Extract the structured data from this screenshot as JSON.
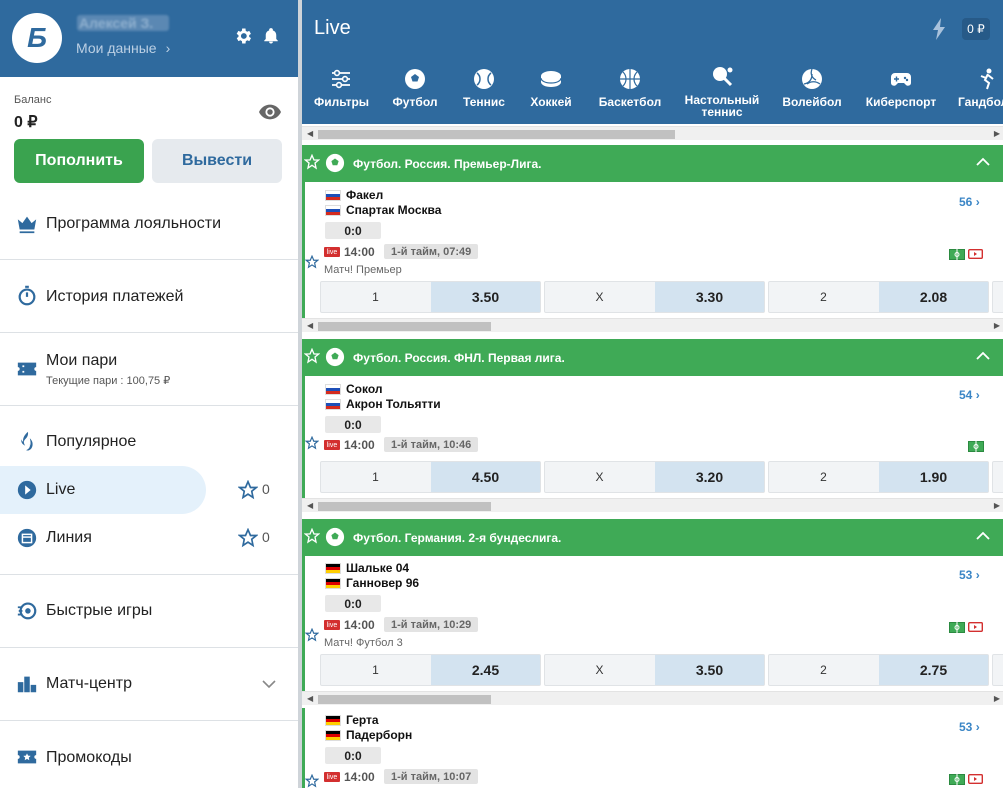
{
  "sidebar": {
    "user_name": "Алексей З.",
    "my_data": "Мои данные",
    "balance_label": "Баланс",
    "balance_value": "0 ₽",
    "deposit": "Пополнить",
    "withdraw": "Вывести",
    "items": {
      "loyalty": "Программа лояльности",
      "payments": "История платежей",
      "bets": "Мои пари",
      "bets_sub": "Текущие пари : 100,75 ₽",
      "popular": "Популярное",
      "live": "Live",
      "live_count": "0",
      "line": "Линия",
      "line_count": "0",
      "quick": "Быстрые игры",
      "match": "Матч-центр",
      "promo": "Промокоды"
    }
  },
  "header": {
    "title": "Live",
    "balance": "0 ₽",
    "sports": [
      "Фильтры",
      "Футбол",
      "Теннис",
      "Хоккей",
      "Баскетбол",
      "Настольный теннис",
      "Волейбол",
      "Киберспорт",
      "Гандбол"
    ]
  },
  "leagues": [
    {
      "name": "Футбол. Россия. Премьер-Лига."
    },
    {
      "name": "Футбол. Россия. ФНЛ. Первая лига."
    },
    {
      "name": "Футбол. Германия. 2-я бундеслига."
    }
  ],
  "events": [
    {
      "home": "Факел",
      "away": "Спартак Москва",
      "score": "0:0",
      "more": "56",
      "live": "live",
      "time": "14:00",
      "period": "1-й тайм, 07:49",
      "comp": "Матч! Премьер",
      "odds": [
        {
          "l": "1",
          "v": "3.50"
        },
        {
          "l": "X",
          "v": "3.30"
        },
        {
          "l": "2",
          "v": "2.08"
        }
      ]
    },
    {
      "home": "Сокол",
      "away": "Акрон Тольятти",
      "score": "0:0",
      "more": "54",
      "live": "live",
      "time": "14:00",
      "period": "1-й тайм, 10:46",
      "comp": "",
      "odds": [
        {
          "l": "1",
          "v": "4.50"
        },
        {
          "l": "X",
          "v": "3.20"
        },
        {
          "l": "2",
          "v": "1.90"
        }
      ]
    },
    {
      "home": "Шальке 04",
      "away": "Ганновер 96",
      "score": "0:0",
      "more": "53",
      "live": "live",
      "time": "14:00",
      "period": "1-й тайм, 10:29",
      "comp": "Матч! Футбол 3",
      "odds": [
        {
          "l": "1",
          "v": "2.45"
        },
        {
          "l": "X",
          "v": "3.50"
        },
        {
          "l": "2",
          "v": "2.75"
        }
      ]
    },
    {
      "home": "Герта",
      "away": "Падерборн",
      "score": "0:0",
      "more": "53",
      "live": "live",
      "time": "14:00",
      "period": "1-й тайм, 10:07",
      "comp": ""
    }
  ],
  "colors": {
    "primary": "#2f6a9e",
    "green": "#3faa56",
    "live_red": "#d32f2f",
    "odd_bg": "#d3e3f0"
  }
}
